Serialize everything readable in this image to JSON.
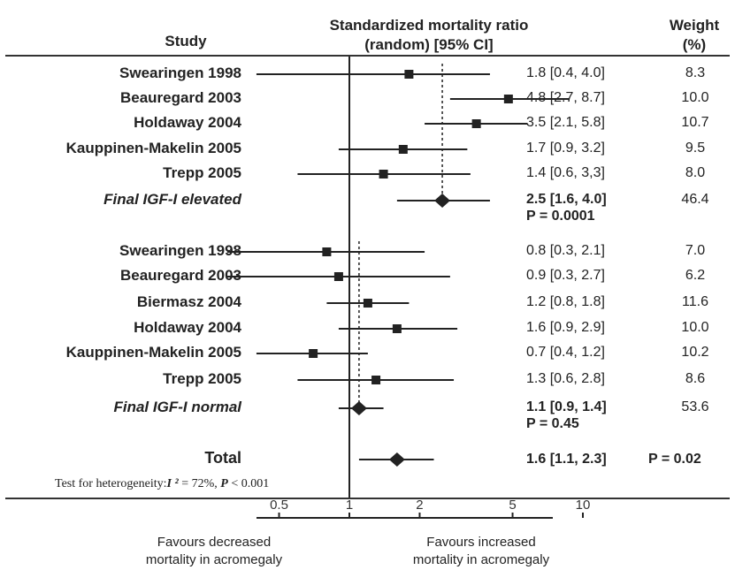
{
  "headers": {
    "study": "Study",
    "smr_line1": "Standardized mortality ratio",
    "smr_line2": "(random) [95% CI]",
    "weight_line1": "Weight",
    "weight_line2": "(%)"
  },
  "heterogeneity": {
    "prefix": "Test for heterogeneity:",
    "i2_symbol": "I ²",
    "i2_value": " = 72%, ",
    "p_symbol": "P",
    "p_value": " < 0.001"
  },
  "favours": {
    "left_line1": "Favours decreased",
    "left_line2": "mortality in acromegaly",
    "right_line1": "Favours increased",
    "right_line2": "mortality in acromegaly"
  },
  "chart_data": {
    "type": "forest",
    "title": "",
    "xscale": "log",
    "xlim": [
      0.3,
      14
    ],
    "xticks": [
      0.5,
      1,
      2,
      5,
      10
    ],
    "xtick_labels": [
      "0.5",
      "1",
      "2",
      "5",
      "10"
    ],
    "reference_line": 1,
    "groups": [
      {
        "studies": [
          {
            "label": "Swearingen 1998",
            "est": 1.8,
            "lo": 0.4,
            "hi": 4.0,
            "ci_text": "1.8 [0.4, 4.0]",
            "weight": "8.3"
          },
          {
            "label": "Beauregard 2003",
            "est": 4.8,
            "lo": 2.7,
            "hi": 8.7,
            "ci_text": "4.8 [2.7, 8.7]",
            "weight": "10.0"
          },
          {
            "label": "Holdaway 2004",
            "est": 3.5,
            "lo": 2.1,
            "hi": 5.8,
            "ci_text": "3.5 [2.1, 5.8]",
            "weight": "10.7"
          },
          {
            "label": "Kauppinen-Makelin 2005",
            "est": 1.7,
            "lo": 0.9,
            "hi": 3.2,
            "ci_text": "1.7 [0.9, 3.2]",
            "weight": "9.5"
          },
          {
            "label": "Trepp 2005",
            "est": 1.4,
            "lo": 0.6,
            "hi": 3.3,
            "ci_text": "1.4 [0.6, 3,3]",
            "weight": "8.0"
          }
        ],
        "summary": {
          "label": "Final IGF-I elevated",
          "est": 2.5,
          "lo": 1.6,
          "hi": 4.0,
          "ci_text": "2.5 [1.6, 4.0]",
          "p_text": "P = 0.0001",
          "weight": "46.4"
        }
      },
      {
        "studies": [
          {
            "label": "Swearingen 1998",
            "est": 0.8,
            "lo": 0.3,
            "hi": 2.1,
            "ci_text": "0.8 [0.3, 2.1]",
            "weight": "7.0"
          },
          {
            "label": "Beauregard 2003",
            "est": 0.9,
            "lo": 0.3,
            "hi": 2.7,
            "ci_text": "0.9 [0.3, 2.7]",
            "weight": "6.2"
          },
          {
            "label": "Biermasz  2004",
            "est": 1.2,
            "lo": 0.8,
            "hi": 1.8,
            "ci_text": "1.2 [0.8, 1.8]",
            "weight": "11.6"
          },
          {
            "label": "Holdaway 2004",
            "est": 1.6,
            "lo": 0.9,
            "hi": 2.9,
            "ci_text": "1.6 [0.9, 2.9]",
            "weight": "10.0"
          },
          {
            "label": "Kauppinen-Makelin 2005",
            "est": 0.7,
            "lo": 0.4,
            "hi": 1.2,
            "ci_text": "0.7 [0.4, 1.2]",
            "weight": "10.2"
          },
          {
            "label": "Trepp 2005",
            "est": 1.3,
            "lo": 0.6,
            "hi": 2.8,
            "ci_text": "1.3 [0.6, 2.8]",
            "weight": "8.6"
          }
        ],
        "summary": {
          "label": "Final IGF-I normal",
          "est": 1.1,
          "lo": 0.9,
          "hi": 1.4,
          "ci_text": "1.1 [0.9, 1.4]",
          "p_text": "P = 0.45",
          "weight": "53.6"
        }
      }
    ],
    "total": {
      "label": "Total",
      "est": 1.6,
      "lo": 1.1,
      "hi": 2.3,
      "ci_text": "1.6 [1.1, 2.3]",
      "p_text": "P = 0.02"
    }
  }
}
